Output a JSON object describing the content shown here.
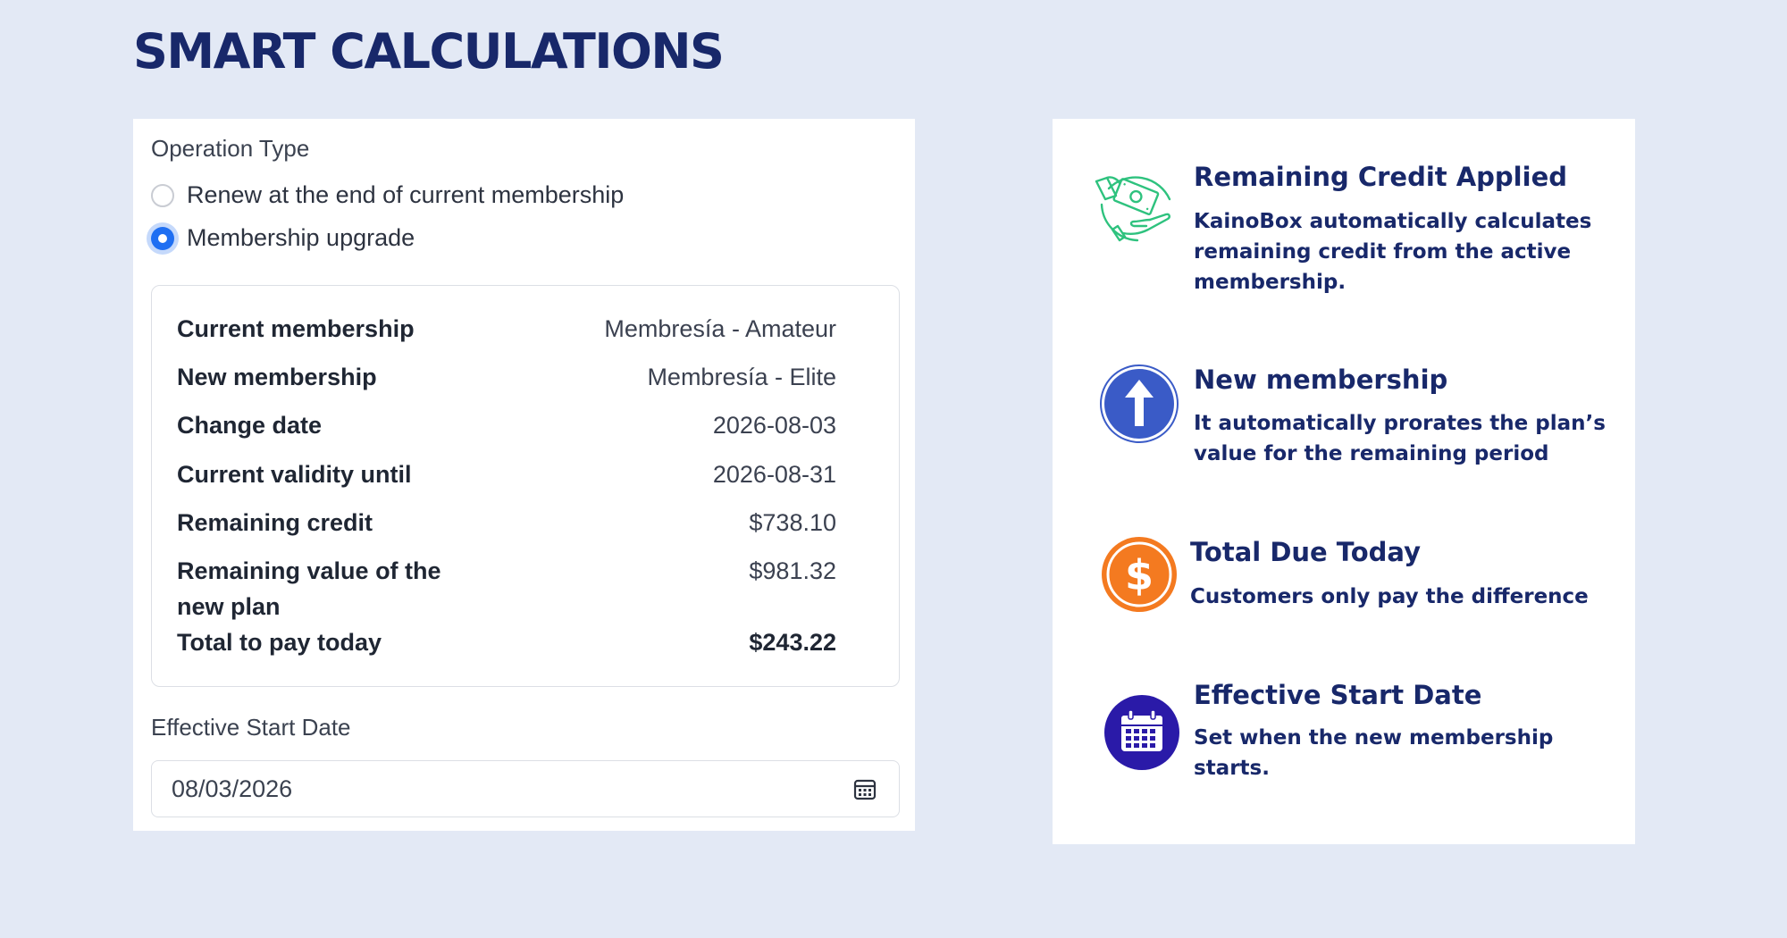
{
  "page": {
    "title": "SMART CALCULATIONS"
  },
  "form": {
    "operation_type_label": "Operation Type",
    "options": [
      {
        "label": "Renew at the end of current membership",
        "selected": false
      },
      {
        "label": "Membership upgrade",
        "selected": true
      }
    ],
    "summary": [
      {
        "key": "Current membership",
        "value": "Membresía - Amateur"
      },
      {
        "key": "New membership",
        "value": "Membresía - Elite"
      },
      {
        "key": "Change date",
        "value": "2026-08-03"
      },
      {
        "key": "Current validity until",
        "value": "2026-08-31"
      },
      {
        "key": "Remaining credit",
        "value": "$738.10"
      },
      {
        "key": "Remaining value of the new plan",
        "value": "$981.32"
      },
      {
        "key": "Total to pay today",
        "value": "$243.22"
      }
    ],
    "effective_start_label": "Effective Start Date",
    "effective_start_value": "08/03/2026"
  },
  "features": [
    {
      "title": "Remaining Credit Applied",
      "description": "KainoBox automatically calculates remaining credit from the active membership.",
      "icon": "money-hand-icon"
    },
    {
      "title": "New membership",
      "description": "It automatically prorates the plan’s value for the remaining period",
      "icon": "arrow-up-icon"
    },
    {
      "title": "Total Due Today",
      "description": "Customers only pay the difference",
      "icon": "dollar-icon"
    },
    {
      "title": "Effective Start Date",
      "description": "Set when the new membership starts.",
      "icon": "calendar-icon"
    }
  ],
  "colors": {
    "background": "#e3e9f5",
    "title": "#18286a",
    "radio_accent": "#1f6ff2",
    "credit_icon": "#2ec27e",
    "membership_icon": "#3a5bc7",
    "dollar_icon": "#f47a20",
    "calendar_icon": "#2a1aa8"
  }
}
